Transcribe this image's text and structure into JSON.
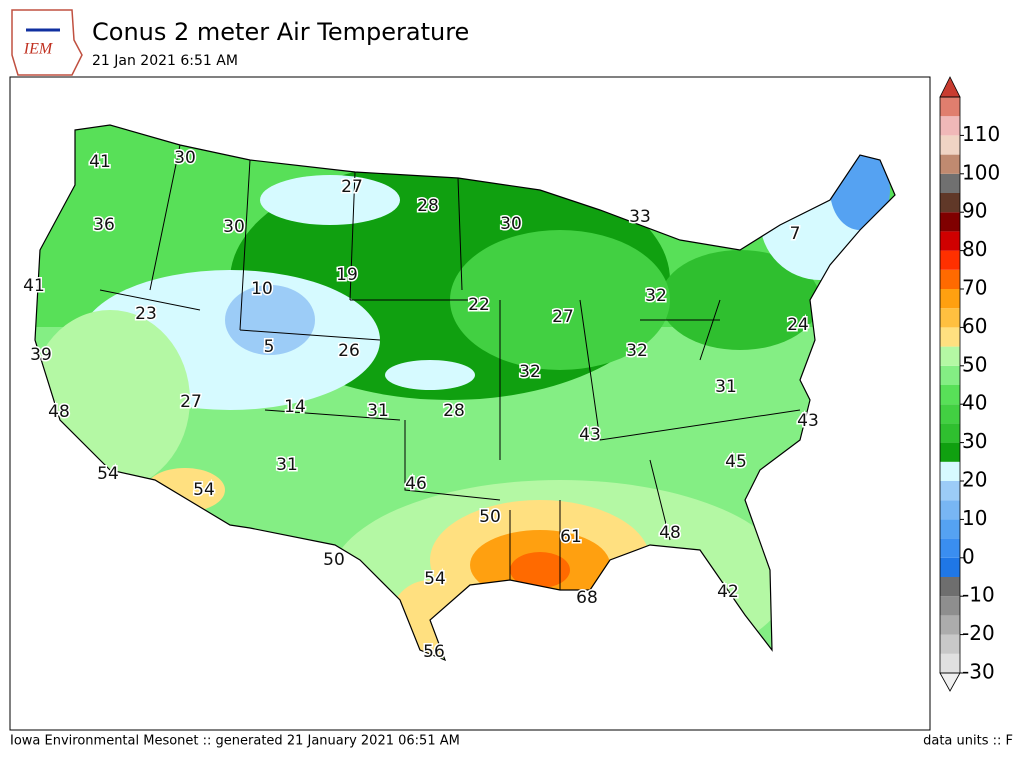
{
  "header": {
    "title": "Conus 2 meter Air Temperature",
    "subtitle": "21 Jan 2021 6:51 AM",
    "logo": "IEM"
  },
  "map": {
    "stations": [
      41,
      30,
      27,
      28,
      30,
      33,
      7,
      36,
      30,
      19,
      10,
      41,
      23,
      22,
      27,
      32,
      24,
      5,
      26,
      32,
      39,
      32,
      31,
      27,
      14,
      31,
      28,
      43,
      43,
      48,
      45,
      46,
      54,
      54,
      31,
      50,
      61,
      48,
      50,
      54,
      68,
      42,
      56
    ]
  },
  "colorbar": {
    "range": [
      -30,
      120
    ],
    "ticks": [
      -30,
      -20,
      -10,
      0,
      10,
      20,
      30,
      40,
      50,
      60,
      70,
      80,
      90,
      100,
      110
    ],
    "colors": [
      "#e0e0e0",
      "#c8c8c8",
      "#acacac",
      "#8e8e8e",
      "#6e6e6e",
      "#1f77e6",
      "#3a8ef0",
      "#55a2f2",
      "#78b6f4",
      "#9cccf7",
      "#d6faff",
      "#10a010",
      "#2fbf2f",
      "#42d042",
      "#58e058",
      "#84ee84",
      "#b4f8a4",
      "#ffe080",
      "#ffc040",
      "#ffa010",
      "#ff6a00",
      "#ff3000",
      "#d00000",
      "#800000",
      "#603828",
      "#707070",
      "#c08a70",
      "#f0d4c4",
      "#f0b8b8",
      "#e07e6e"
    ]
  },
  "footer": {
    "left": "Iowa Environmental Mesonet :: generated 21 January 2021 06:51 AM",
    "right": "data units :: F"
  }
}
